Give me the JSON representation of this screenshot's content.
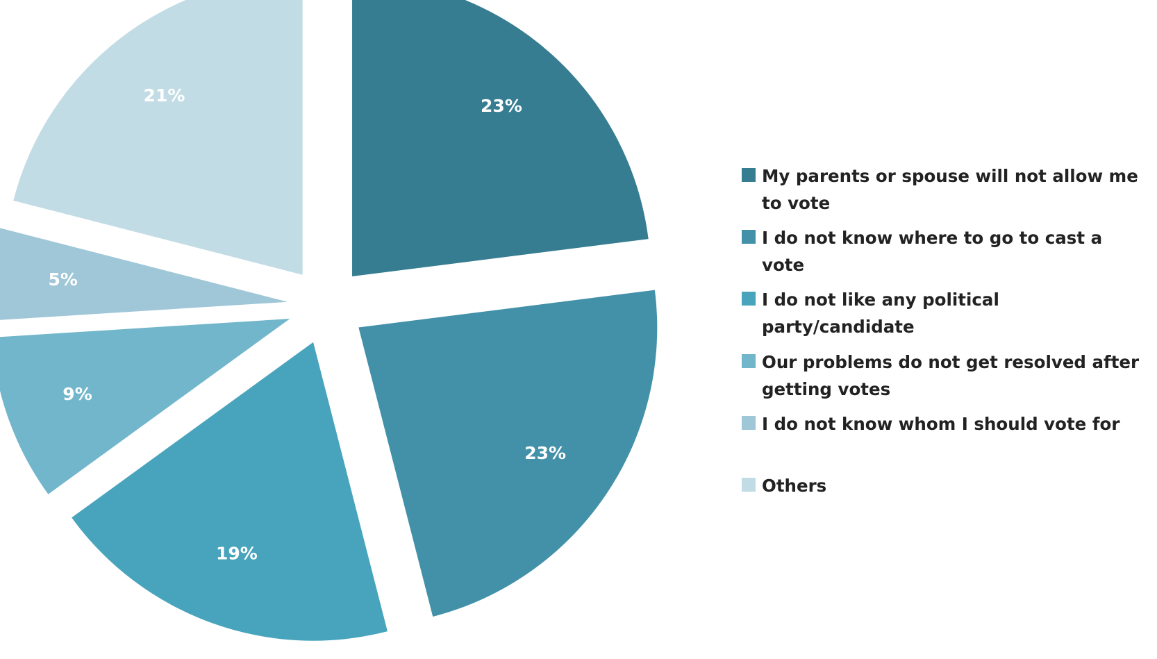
{
  "chart_data": {
    "type": "pie",
    "exploded": true,
    "slices": [
      {
        "name": "My parents or spouse will not allow me to vote",
        "value": 23,
        "label": "23%",
        "color": "#377d91"
      },
      {
        "name": "I do not know where to go to cast a vote",
        "value": 23,
        "label": "23%",
        "color": "#4291a9"
      },
      {
        "name": "I do not like any political party/candidate",
        "value": 19,
        "label": "19%",
        "color": "#48a4bc"
      },
      {
        "name": "Our problems do not get resolved after getting votes",
        "value": 9,
        "label": "9%",
        "color": "#72b6cc"
      },
      {
        "name": "I do not know whom I should vote for",
        "value": 5,
        "label": "5%",
        "color": "#9fc7d7"
      },
      {
        "name": "Others",
        "value": 21,
        "label": "21%",
        "color": "#c2dce5"
      }
    ],
    "legend_position": "right"
  }
}
